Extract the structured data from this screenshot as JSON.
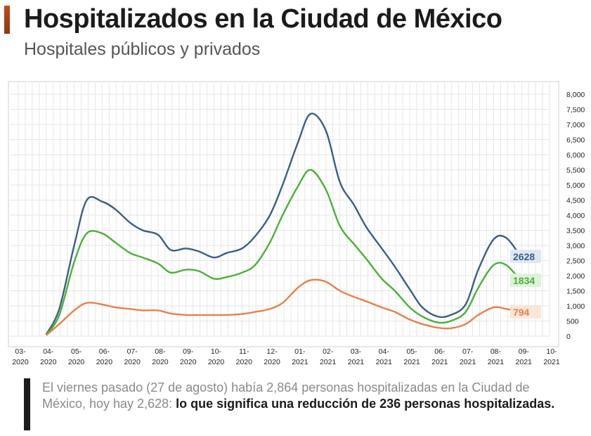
{
  "header": {
    "title": "Hospitalizados en la Ciudad de México",
    "subtitle": "Hospitales públicos y privados"
  },
  "note": {
    "text_plain": "El viernes pasado (27 de agosto) había 2,864 personas hospitalizadas en la Ciudad de México, hoy hay 2,628: ",
    "text_bold": "lo que significa una reducción de 236 personas hospitalizadas."
  },
  "colors": {
    "total": "#3a5f85",
    "green": "#4caf3a",
    "orange": "#e8804a",
    "grid": "#e6e6e6",
    "label_total_bg": "#dde8f5",
    "label_green_bg": "#dff2d8",
    "label_orange_bg": "#fbe6da"
  },
  "chart_data": {
    "type": "line",
    "title": "",
    "xlabel": "",
    "ylabel": "",
    "ylim": [
      0,
      8000
    ],
    "y_ticks": [
      0,
      500,
      1000,
      1500,
      2000,
      2500,
      3000,
      3500,
      4000,
      4500,
      5000,
      5500,
      6000,
      6500,
      7000,
      7500,
      8000
    ],
    "y_tick_labels": [
      "0",
      "500",
      "1,000",
      "1,500",
      "2,000",
      "2,500",
      "3,000",
      "3,500",
      "4,000",
      "4,500",
      "5,000",
      "5,500",
      "6,000",
      "6,500",
      "7,000",
      "7,500",
      "8,000"
    ],
    "x_tick_labels": [
      [
        "03-",
        "2020"
      ],
      [
        "04-",
        "2020"
      ],
      [
        "05-",
        "2020"
      ],
      [
        "06-",
        "2020"
      ],
      [
        "07-",
        "2020"
      ],
      [
        "08-",
        "2020"
      ],
      [
        "09-",
        "2020"
      ],
      [
        "10-",
        "2020"
      ],
      [
        "11-",
        "2020"
      ],
      [
        "12-",
        "2020"
      ],
      [
        "01-",
        "2021"
      ],
      [
        "02-",
        "2021"
      ],
      [
        "03-",
        "2021"
      ],
      [
        "04-",
        "2021"
      ],
      [
        "05-",
        "2021"
      ],
      [
        "06-",
        "2021"
      ],
      [
        "07-",
        "2021"
      ],
      [
        "08-",
        "2021"
      ],
      [
        "09-",
        "2021"
      ],
      [
        "10-",
        "2021"
      ]
    ],
    "x": [
      "2020-04-01",
      "2020-04-15",
      "2020-05-01",
      "2020-05-15",
      "2020-06-01",
      "2020-06-15",
      "2020-07-01",
      "2020-07-15",
      "2020-08-01",
      "2020-08-15",
      "2020-09-01",
      "2020-09-15",
      "2020-10-01",
      "2020-10-15",
      "2020-11-01",
      "2020-11-15",
      "2020-12-01",
      "2020-12-15",
      "2021-01-01",
      "2021-01-15",
      "2021-02-01",
      "2021-02-15",
      "2021-03-01",
      "2021-03-15",
      "2021-04-01",
      "2021-04-15",
      "2021-05-01",
      "2021-05-15",
      "2021-06-01",
      "2021-06-15",
      "2021-07-01",
      "2021-07-15",
      "2021-08-01",
      "2021-08-15",
      "2021-08-31"
    ],
    "series": [
      {
        "values": [
          60,
          900,
          3000,
          4500,
          4450,
          4200,
          3750,
          3500,
          3350,
          2850,
          2900,
          2800,
          2600,
          2750,
          2900,
          3300,
          4000,
          5000,
          6400,
          7350,
          6800,
          5100,
          4350,
          3600,
          2900,
          2300,
          1550,
          950,
          650,
          700,
          1050,
          2200,
          3200,
          3250,
          2628
        ],
        "end_label": "2628"
      },
      {
        "values": [
          40,
          700,
          2450,
          3400,
          3400,
          3100,
          2750,
          2600,
          2400,
          2100,
          2200,
          2150,
          1900,
          1950,
          2100,
          2350,
          3100,
          4000,
          4950,
          5500,
          4850,
          3650,
          3050,
          2550,
          1900,
          1500,
          950,
          650,
          450,
          500,
          800,
          1600,
          2350,
          2350,
          1834
        ],
        "end_label": "1834"
      },
      {
        "values": [
          30,
          400,
          850,
          1100,
          1050,
          950,
          900,
          850,
          850,
          750,
          700,
          700,
          700,
          700,
          730,
          800,
          900,
          1100,
          1600,
          1850,
          1800,
          1500,
          1300,
          1150,
          950,
          800,
          550,
          400,
          280,
          260,
          400,
          700,
          950,
          900,
          794
        ],
        "end_label": "794"
      }
    ],
    "grid": true,
    "legend": "none"
  }
}
